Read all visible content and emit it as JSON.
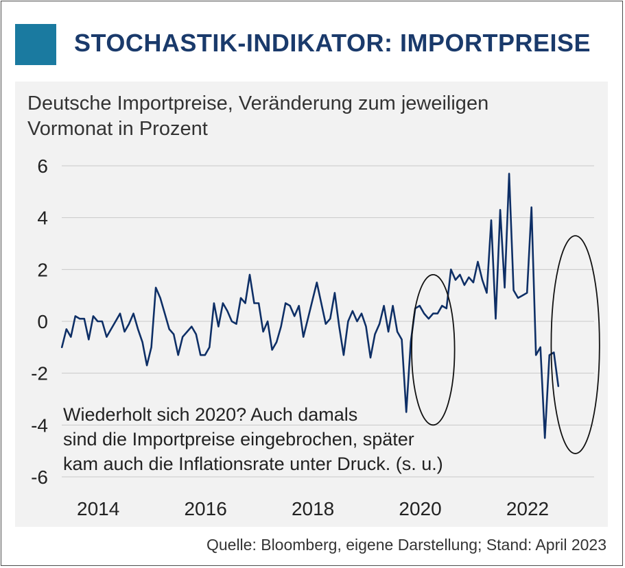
{
  "header": {
    "title": "STOCHASTIK-INDIKATOR: IMPORTPREISE"
  },
  "colors": {
    "title": "#1a3a6b",
    "accent_square": "#1a7aa0",
    "line": "#0e2f66",
    "grid": "#c8c8c8",
    "panel": "#f2f2f2"
  },
  "chart_data": {
    "type": "line",
    "title": "Deutsche Importpreise, Veränderung zum jeweiligen Vormonat in Prozent",
    "xlabel": "",
    "ylabel": "",
    "ylim": [
      -6,
      6
    ],
    "xlim": [
      2013.33,
      2023.25
    ],
    "grid": true,
    "y_ticks": [
      6,
      4,
      2,
      0,
      -2,
      -4,
      -6
    ],
    "y_tick_labels": [
      "6",
      "4",
      "2",
      "0",
      "-2",
      "-4",
      "-6"
    ],
    "x_ticks": [
      2014,
      2016,
      2018,
      2020,
      2022
    ],
    "x_tick_labels": [
      "2014",
      "2016",
      "2018",
      "2020",
      "2022"
    ],
    "series": [
      {
        "name": "Importpreise (Vormonat, %)",
        "start_year": 2013.333,
        "step": 0.08333,
        "values": [
          -1.0,
          -0.3,
          -0.6,
          0.2,
          0.1,
          0.1,
          -0.7,
          0.2,
          0.0,
          0.0,
          -0.6,
          -0.3,
          0.0,
          0.3,
          -0.4,
          -0.1,
          0.3,
          -0.3,
          -0.8,
          -1.7,
          -1.0,
          1.3,
          0.9,
          0.3,
          -0.3,
          -0.5,
          -1.3,
          -0.6,
          -0.4,
          -0.2,
          -0.5,
          -1.3,
          -1.3,
          -1.0,
          0.7,
          -0.2,
          0.7,
          0.4,
          0.0,
          -0.1,
          0.9,
          0.7,
          1.8,
          0.7,
          0.7,
          -0.4,
          0.0,
          -1.1,
          -0.8,
          -0.2,
          0.7,
          0.6,
          0.2,
          0.6,
          -0.6,
          0.1,
          0.8,
          1.5,
          0.7,
          -0.1,
          0.1,
          1.1,
          -0.2,
          -1.3,
          0.0,
          0.4,
          0.0,
          0.3,
          -0.2,
          -1.4,
          -0.5,
          -0.1,
          0.6,
          -0.4,
          0.6,
          -0.4,
          -0.7,
          -3.5,
          -0.8,
          0.5,
          0.6,
          0.3,
          0.1,
          0.3,
          0.3,
          0.6,
          0.5,
          2.0,
          1.6,
          1.8,
          1.4,
          1.7,
          1.5,
          2.3,
          1.6,
          1.1,
          3.9,
          0.1,
          4.3,
          1.3,
          5.7,
          1.2,
          0.9,
          1.0,
          1.1,
          4.4,
          -1.3,
          -1.0,
          -4.5,
          -1.3,
          -1.2,
          -2.5
        ]
      }
    ],
    "annotation": {
      "lines": [
        "Wiederholt sich 2020? Auch damals",
        "sind die Importpreise eingebrochen, später",
        "kam auch die Inflationsrate unter Druck. (s. u.)"
      ]
    },
    "highlight_ellipses": [
      {
        "label": "2020",
        "x_center": 2020.25,
        "y_center": -1.1,
        "x_radius": 0.4,
        "y_radius": 2.9
      },
      {
        "label": "2022/2023",
        "x_center": 2022.9,
        "y_center": -0.9,
        "x_radius": 0.45,
        "y_radius": 4.2
      }
    ]
  },
  "footer": {
    "source": "Quelle: Bloomberg, eigene Darstellung; Stand: April 2023"
  }
}
